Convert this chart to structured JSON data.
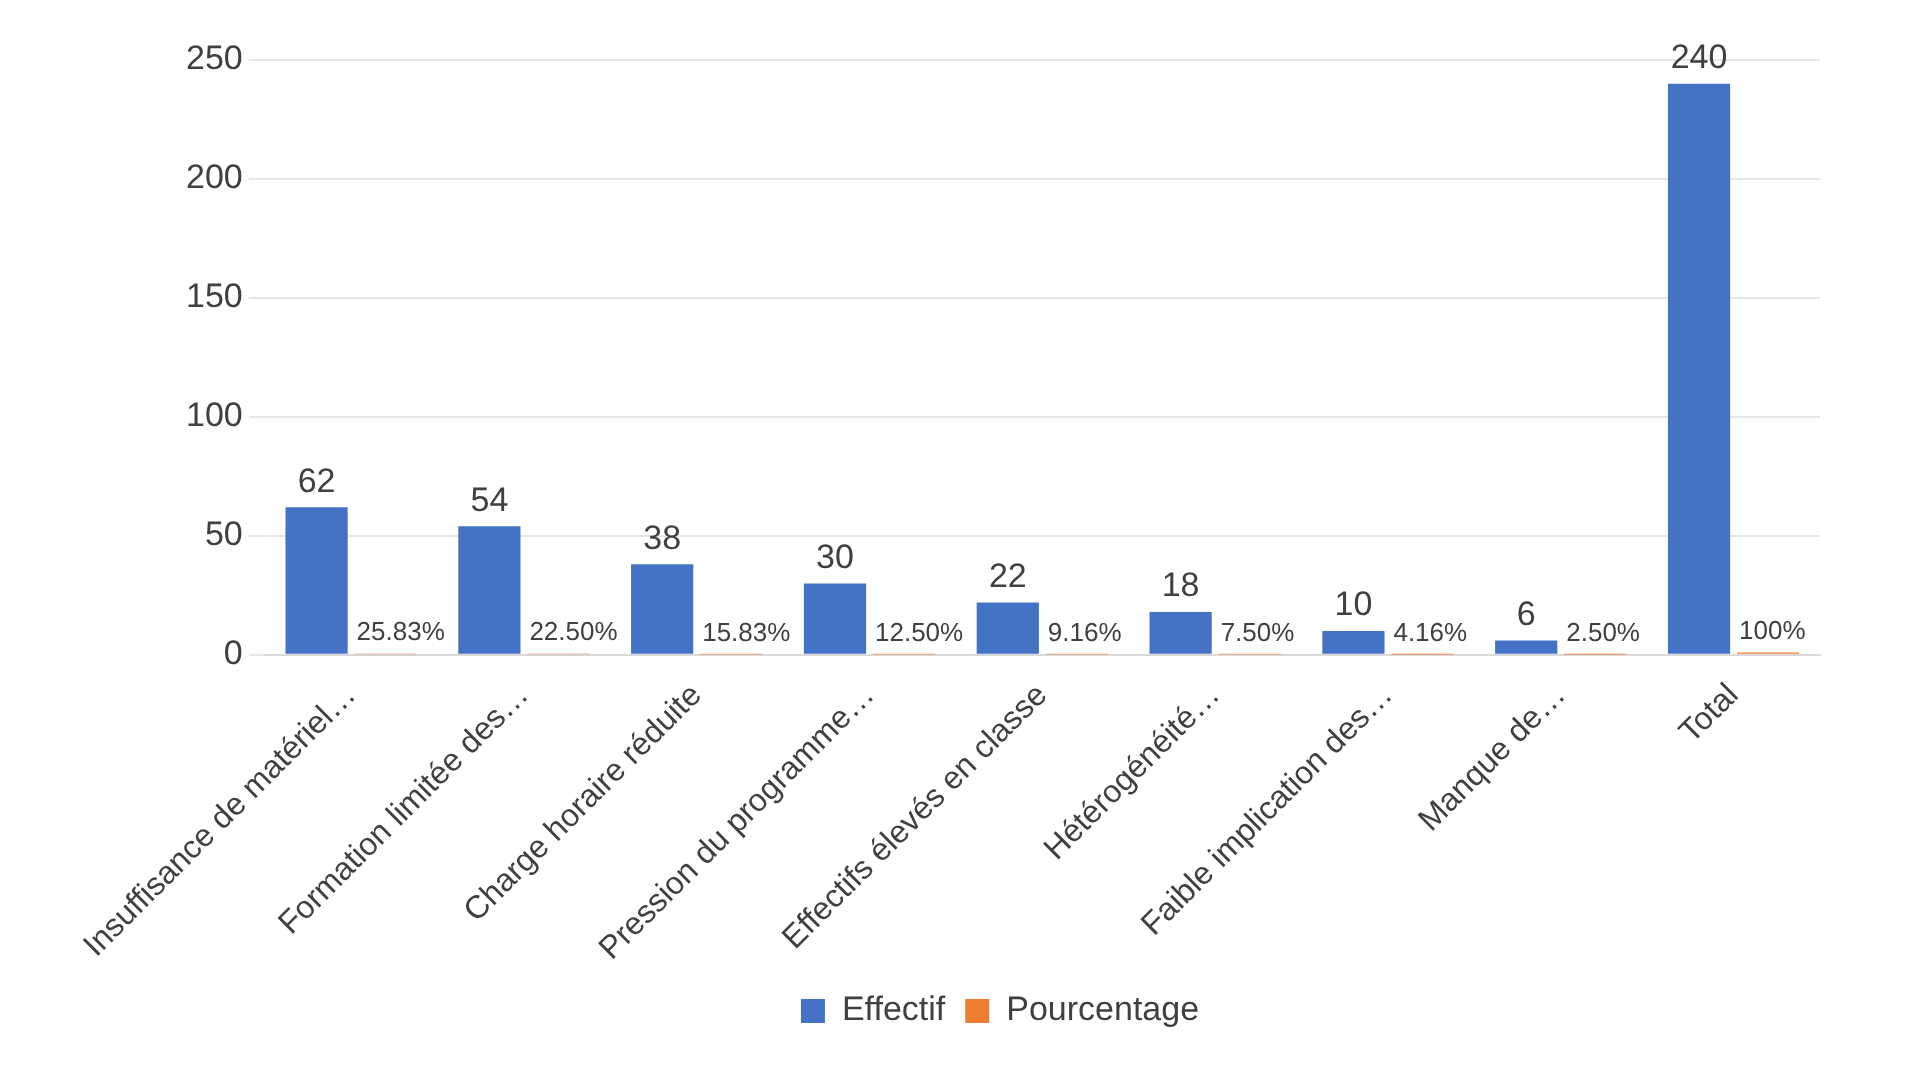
{
  "chart_data": {
    "type": "bar",
    "categories": [
      "Insuffisance de matériel…",
      "Formation limitée des…",
      "Charge horaire réduite",
      "Pression du programme…",
      "Effectifs élevés en classe",
      "Hétérogénéité…",
      "Faible implication des…",
      "Manque de…",
      "Total"
    ],
    "series": [
      {
        "name": "Effectif",
        "color": "#4472c4",
        "values": [
          62,
          54,
          38,
          30,
          22,
          18,
          10,
          6,
          240
        ],
        "data_labels": true
      },
      {
        "name": "Pourcentage",
        "color": "#ed7d31",
        "values": [
          0.2583,
          0.225,
          0.1583,
          0.125,
          0.0916,
          0.075,
          0.0416,
          0.025,
          1
        ],
        "value_labels": [
          "25.83%",
          "22.50%",
          "15.83%",
          "12.50%",
          "9.16%",
          "7.50%",
          "4.16%",
          "2.50%",
          "100%"
        ]
      }
    ],
    "ylim": [
      0,
      250
    ],
    "yticks": [
      0,
      50,
      100,
      150,
      200,
      250
    ],
    "grid": "y",
    "legend": "bottom"
  }
}
